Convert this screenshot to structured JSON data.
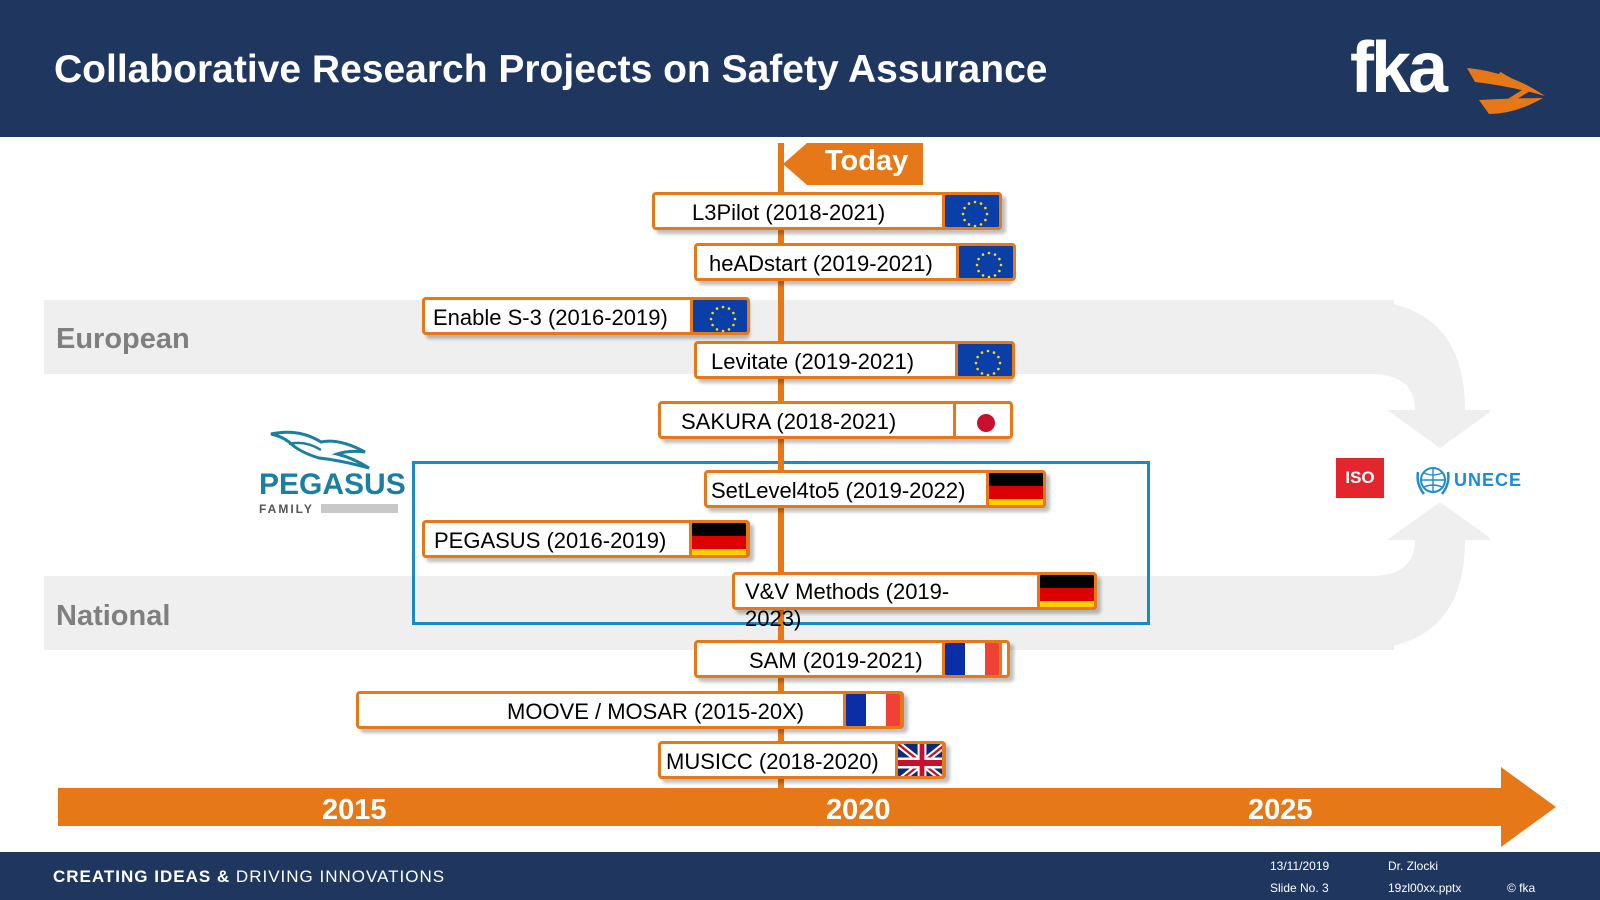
{
  "header": {
    "title": "Collaborative Research Projects on Safety Assurance",
    "logo": "fka"
  },
  "bands": {
    "european": "European",
    "national": "National"
  },
  "today_label": "Today",
  "projects": [
    {
      "label": "L3Pilot (2018-2021)",
      "flag": "eu-flag"
    },
    {
      "label": "heADstart (2019-2021)",
      "flag": "eu-flag"
    },
    {
      "label": "Enable S-3 (2016-2019)",
      "flag": "eu-flag"
    },
    {
      "label": "Levitate (2019-2021)",
      "flag": "eu-flag"
    },
    {
      "label": "SAKURA (2018-2021)",
      "flag": "japan-flag"
    },
    {
      "label": "SetLevel4to5 (2019-2022)",
      "flag": "germany-flag"
    },
    {
      "label": "PEGASUS (2016-2019)",
      "flag": "germany-flag"
    },
    {
      "label": "V&V Methods (2019-2023)",
      "flag": "germany-flag"
    },
    {
      "label": "SAM (2019-2021)",
      "flag": "france-flag"
    },
    {
      "label": "MOOVE / MOSAR (2015-20X)",
      "flag": "france-flag"
    },
    {
      "label": "MUSICC (2018-2020)",
      "flag": "uk-flag"
    }
  ],
  "pegasus_logo": {
    "name": "PEGASUS",
    "sub": "FAMILY"
  },
  "standards": {
    "iso": "ISO",
    "unece": "UNECE"
  },
  "timeline": {
    "years": [
      "2015",
      "2020",
      "2025"
    ]
  },
  "colors": {
    "primary": "#1f365f",
    "accent": "#e67817",
    "box": "#1a8ac6",
    "band": "#efefef"
  },
  "footer": {
    "slogan_bold": "CREATING IDEAS &",
    "slogan_rest": " DRIVING INNOVATIONS",
    "date": "13/11/2019",
    "slide": "Slide No. 3",
    "author": "Dr. Zlocki",
    "file": "19zl00xx.pptx",
    "copyright": "© fka"
  }
}
